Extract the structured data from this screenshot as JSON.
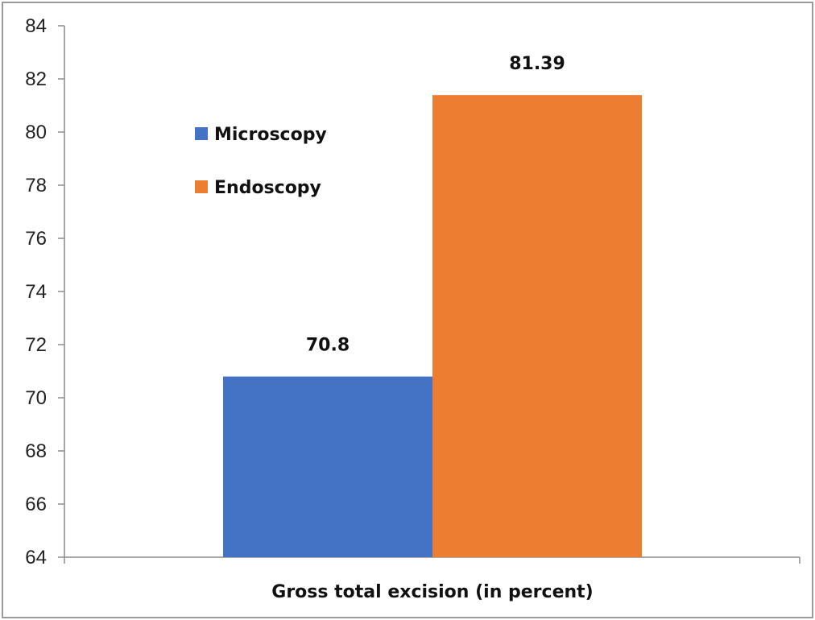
{
  "chart_data": {
    "type": "bar",
    "title": "",
    "xlabel": "Gross total excision (in percent)",
    "ylabel": "",
    "categories": [
      "Gross total excision (in percent)"
    ],
    "series": [
      {
        "name": "Microscopy",
        "values": [
          70.8
        ],
        "color": "#4472C4",
        "label": "70.8"
      },
      {
        "name": "Endoscopy",
        "values": [
          81.39
        ],
        "color": "#ED7D31",
        "label": "81.39"
      }
    ],
    "ylim": [
      64,
      84
    ],
    "yticks": [
      "64",
      "66",
      "68",
      "70",
      "72",
      "74",
      "76",
      "78",
      "80",
      "82",
      "84"
    ],
    "grid": false,
    "legend_position": "top-left-inside"
  }
}
